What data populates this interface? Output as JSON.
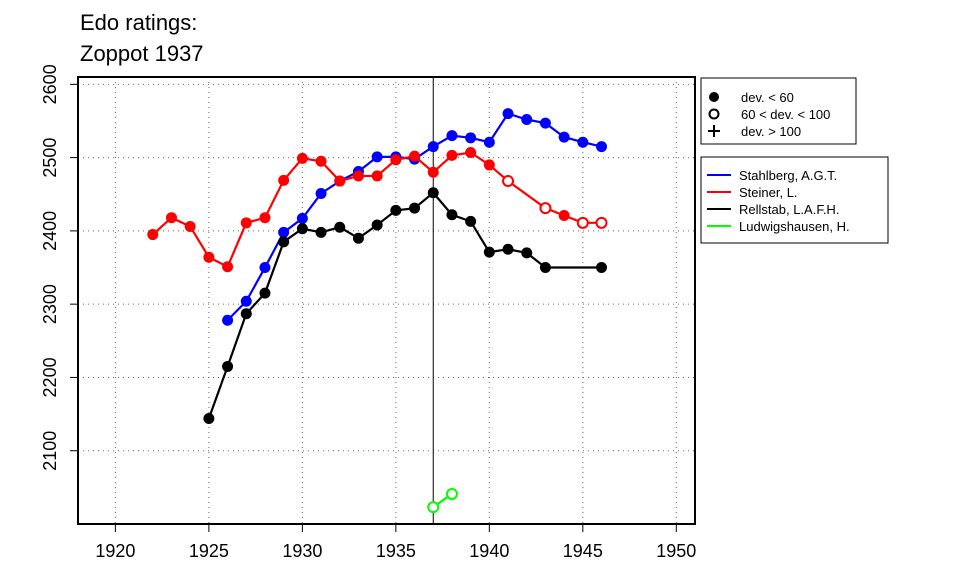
{
  "chart_data": {
    "type": "line",
    "title_lines": [
      "Edo ratings:",
      "Zoppot 1937"
    ],
    "xlabel": "",
    "ylabel": "",
    "xlim": [
      1918,
      1951
    ],
    "ylim": [
      2000,
      2610
    ],
    "x_ticks": [
      1920,
      1925,
      1930,
      1935,
      1940,
      1945,
      1950
    ],
    "y_ticks": [
      2100,
      2200,
      2300,
      2400,
      2500,
      2600
    ],
    "grid": "dotted",
    "reference_line_x": 1937,
    "marker_legend": [
      {
        "marker": "filled-circle",
        "label": "dev. < 60"
      },
      {
        "marker": "open-circle",
        "label": "60 < dev. < 100"
      },
      {
        "marker": "plus",
        "label": "dev. > 100"
      }
    ],
    "legend_position": "right",
    "series": [
      {
        "name": "Stahlberg, A.G.T.",
        "color": "#0000ff",
        "points": [
          {
            "x": 1926,
            "y": 2278,
            "m": "filled"
          },
          {
            "x": 1927,
            "y": 2304,
            "m": "filled"
          },
          {
            "x": 1928,
            "y": 2350,
            "m": "filled"
          },
          {
            "x": 1929,
            "y": 2398,
            "m": "filled"
          },
          {
            "x": 1930,
            "y": 2417,
            "m": "filled"
          },
          {
            "x": 1931,
            "y": 2451,
            "m": "filled"
          },
          {
            "x": 1932,
            "y": 2468,
            "m": "filled"
          },
          {
            "x": 1933,
            "y": 2481,
            "m": "filled"
          },
          {
            "x": 1934,
            "y": 2501,
            "m": "filled"
          },
          {
            "x": 1935,
            "y": 2501,
            "m": "filled"
          },
          {
            "x": 1936,
            "y": 2498,
            "m": "filled"
          },
          {
            "x": 1937,
            "y": 2515,
            "m": "filled"
          },
          {
            "x": 1938,
            "y": 2530,
            "m": "filled"
          },
          {
            "x": 1939,
            "y": 2527,
            "m": "filled"
          },
          {
            "x": 1940,
            "y": 2521,
            "m": "filled"
          },
          {
            "x": 1941,
            "y": 2560,
            "m": "filled"
          },
          {
            "x": 1942,
            "y": 2552,
            "m": "filled"
          },
          {
            "x": 1943,
            "y": 2547,
            "m": "filled"
          },
          {
            "x": 1944,
            "y": 2528,
            "m": "filled"
          },
          {
            "x": 1945,
            "y": 2521,
            "m": "filled"
          },
          {
            "x": 1946,
            "y": 2515,
            "m": "filled"
          }
        ]
      },
      {
        "name": "Steiner, L.",
        "color": "#ff0000",
        "points": [
          {
            "x": 1922,
            "y": 2395,
            "m": "filled"
          },
          {
            "x": 1923,
            "y": 2418,
            "m": "filled"
          },
          {
            "x": 1924,
            "y": 2406,
            "m": "filled"
          },
          {
            "x": 1925,
            "y": 2364,
            "m": "filled"
          },
          {
            "x": 1926,
            "y": 2351,
            "m": "filled"
          },
          {
            "x": 1927,
            "y": 2411,
            "m": "filled"
          },
          {
            "x": 1928,
            "y": 2418,
            "m": "filled"
          },
          {
            "x": 1929,
            "y": 2469,
            "m": "filled"
          },
          {
            "x": 1930,
            "y": 2499,
            "m": "filled"
          },
          {
            "x": 1931,
            "y": 2495,
            "m": "filled"
          },
          {
            "x": 1932,
            "y": 2468,
            "m": "filled"
          },
          {
            "x": 1933,
            "y": 2475,
            "m": "filled"
          },
          {
            "x": 1934,
            "y": 2475,
            "m": "filled"
          },
          {
            "x": 1935,
            "y": 2497,
            "m": "filled"
          },
          {
            "x": 1936,
            "y": 2502,
            "m": "filled"
          },
          {
            "x": 1937,
            "y": 2480,
            "m": "filled"
          },
          {
            "x": 1938,
            "y": 2503,
            "m": "filled"
          },
          {
            "x": 1939,
            "y": 2507,
            "m": "filled"
          },
          {
            "x": 1940,
            "y": 2490,
            "m": "filled"
          },
          {
            "x": 1941,
            "y": 2468,
            "m": "open"
          },
          {
            "x": 1943,
            "y": 2431,
            "m": "open"
          },
          {
            "x": 1944,
            "y": 2421,
            "m": "filled"
          },
          {
            "x": 1945,
            "y": 2411,
            "m": "open"
          },
          {
            "x": 1946,
            "y": 2411,
            "m": "open"
          }
        ]
      },
      {
        "name": "Rellstab, L.A.F.H.",
        "color": "#000000",
        "points": [
          {
            "x": 1925,
            "y": 2144,
            "m": "filled"
          },
          {
            "x": 1926,
            "y": 2215,
            "m": "filled"
          },
          {
            "x": 1927,
            "y": 2287,
            "m": "filled"
          },
          {
            "x": 1928,
            "y": 2315,
            "m": "filled"
          },
          {
            "x": 1929,
            "y": 2385,
            "m": "filled"
          },
          {
            "x": 1930,
            "y": 2403,
            "m": "filled"
          },
          {
            "x": 1931,
            "y": 2398,
            "m": "filled"
          },
          {
            "x": 1932,
            "y": 2405,
            "m": "filled"
          },
          {
            "x": 1933,
            "y": 2390,
            "m": "filled"
          },
          {
            "x": 1934,
            "y": 2408,
            "m": "filled"
          },
          {
            "x": 1935,
            "y": 2428,
            "m": "filled"
          },
          {
            "x": 1936,
            "y": 2431,
            "m": "filled"
          },
          {
            "x": 1937,
            "y": 2452,
            "m": "filled"
          },
          {
            "x": 1938,
            "y": 2422,
            "m": "filled"
          },
          {
            "x": 1939,
            "y": 2413,
            "m": "filled"
          },
          {
            "x": 1940,
            "y": 2371,
            "m": "filled"
          },
          {
            "x": 1941,
            "y": 2375,
            "m": "filled"
          },
          {
            "x": 1942,
            "y": 2370,
            "m": "filled"
          },
          {
            "x": 1943,
            "y": 2350,
            "m": "filled"
          },
          {
            "x": 1946,
            "y": 2350,
            "m": "filled"
          }
        ]
      },
      {
        "name": "Ludwigshausen, H.",
        "color": "#00ff00",
        "points": [
          {
            "x": 1937,
            "y": 2023,
            "m": "open"
          },
          {
            "x": 1938,
            "y": 2041,
            "m": "open"
          }
        ]
      }
    ]
  }
}
